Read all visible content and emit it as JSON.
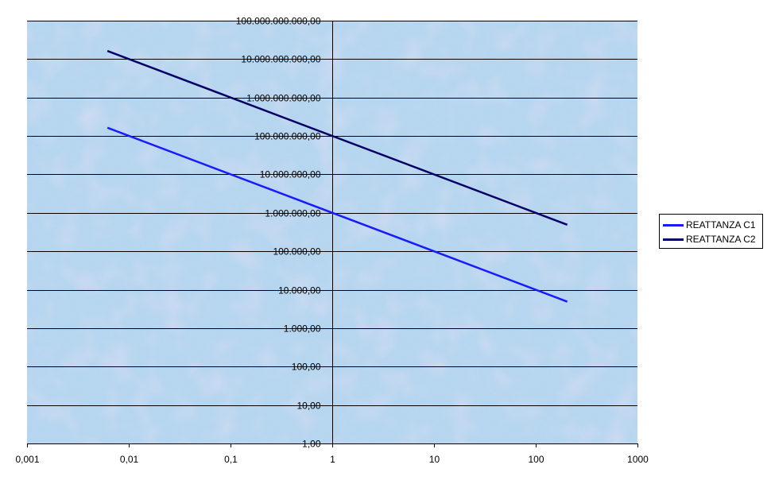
{
  "chart_data": {
    "type": "line",
    "title": "",
    "xlabel": "",
    "ylabel": "",
    "x_scale": "log",
    "y_scale": "log",
    "xlim": [
      0.001,
      1000
    ],
    "ylim": [
      1,
      100000000000
    ],
    "x_ticks": [
      "0,001",
      "0,01",
      "0,1",
      "1",
      "10",
      "100",
      "1000"
    ],
    "y_ticks": [
      "1,00",
      "10,00",
      "100,00",
      "1.000,00",
      "10.000,00",
      "100.000,00",
      "1.000.000,00",
      "10.000.000,00",
      "100.000.000,00",
      "1.000.000.000,00",
      "10.000.000.000,00",
      "100.000.000.000,00"
    ],
    "grid": "horizontal major",
    "legend_position": "right",
    "colors": {
      "plot_background": "#b3d4ee",
      "plot_background_tint": "#d6c6ec",
      "gridline": "#000000"
    },
    "series": [
      {
        "name": "REATTANZA C1",
        "color": "#1a1aff",
        "x": [
          0.0063,
          200
        ],
        "y": [
          160000000,
          5000
        ]
      },
      {
        "name": "REATTANZA C2",
        "color": "#000066",
        "x": [
          0.0063,
          200
        ],
        "y": [
          16000000000,
          500000
        ]
      }
    ]
  }
}
